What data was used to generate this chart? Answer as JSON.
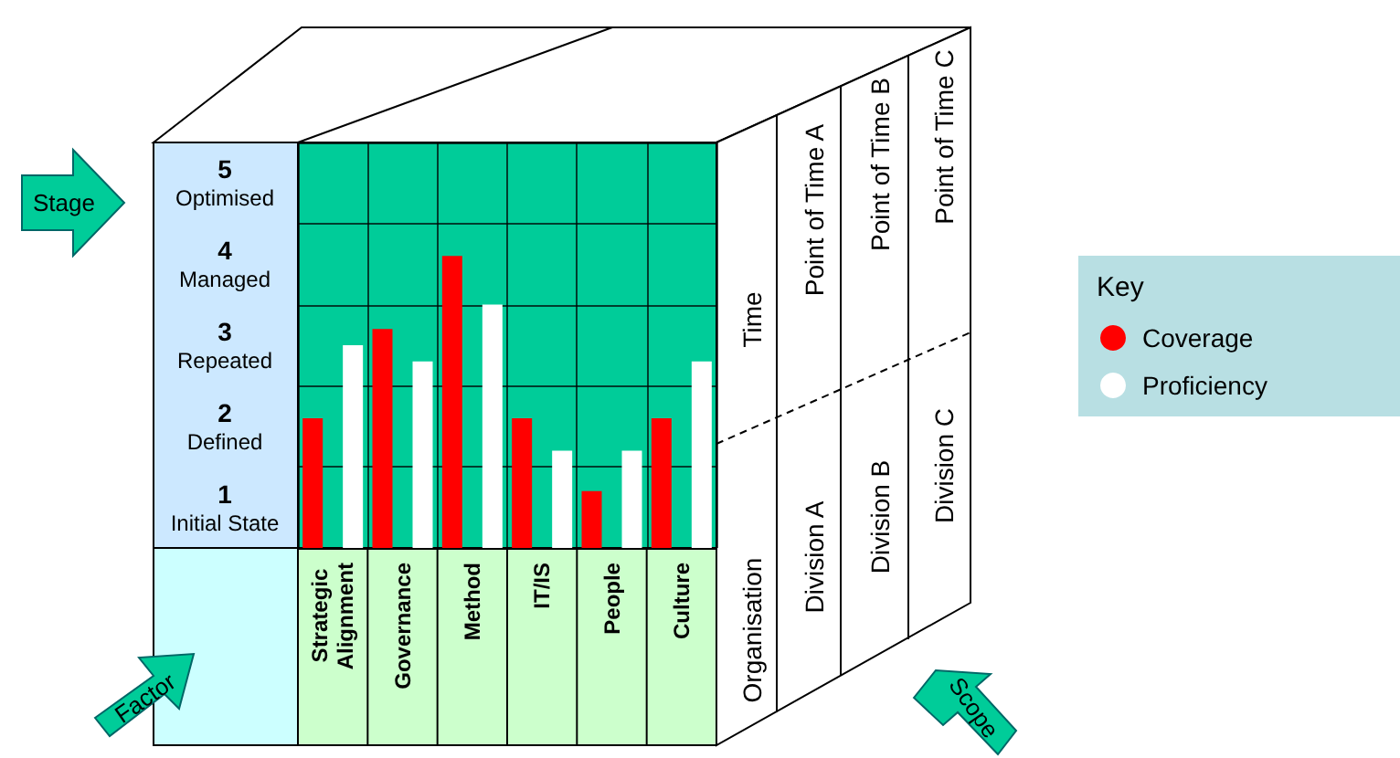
{
  "chart_data": {
    "type": "bar",
    "categories": [
      "Strategic Alignment",
      "Governance",
      "Method",
      "IT/IS",
      "People",
      "Culture"
    ],
    "series": [
      {
        "name": "Coverage",
        "color": "#ff0000",
        "values": [
          1.6,
          2.7,
          3.6,
          1.6,
          0.7,
          1.6
        ]
      },
      {
        "name": "Proficiency",
        "color": "#ffffff",
        "values": [
          2.5,
          2.3,
          3.0,
          1.2,
          1.2,
          2.3
        ]
      }
    ],
    "ylim": [
      0,
      5
    ],
    "yticks": [
      {
        "value": 0,
        "label": null
      },
      {
        "value": 0.5,
        "label": "1\nInitial State"
      },
      {
        "value": 1,
        "label": null
      },
      {
        "value": 1.5,
        "label": "2\nDefined"
      },
      {
        "value": 2,
        "label": null
      },
      {
        "value": 2.5,
        "label": "3\nRepeated"
      },
      {
        "value": 3,
        "label": null
      },
      {
        "value": 3.5,
        "label": "4\nManaged"
      },
      {
        "value": 4,
        "label": null
      },
      {
        "value": 4.5,
        "label": "5\nOptimised"
      },
      {
        "value": 5,
        "label": null
      }
    ],
    "grid": true,
    "legend": "right",
    "legend_title": "Key",
    "annotations": [
      "Time",
      "Point of Time A",
      "Point of Time B",
      "Point of Time C",
      "Organisation",
      "Division A",
      "Division B",
      "Division C",
      "Stage",
      "Factor",
      "Scope"
    ]
  }
}
